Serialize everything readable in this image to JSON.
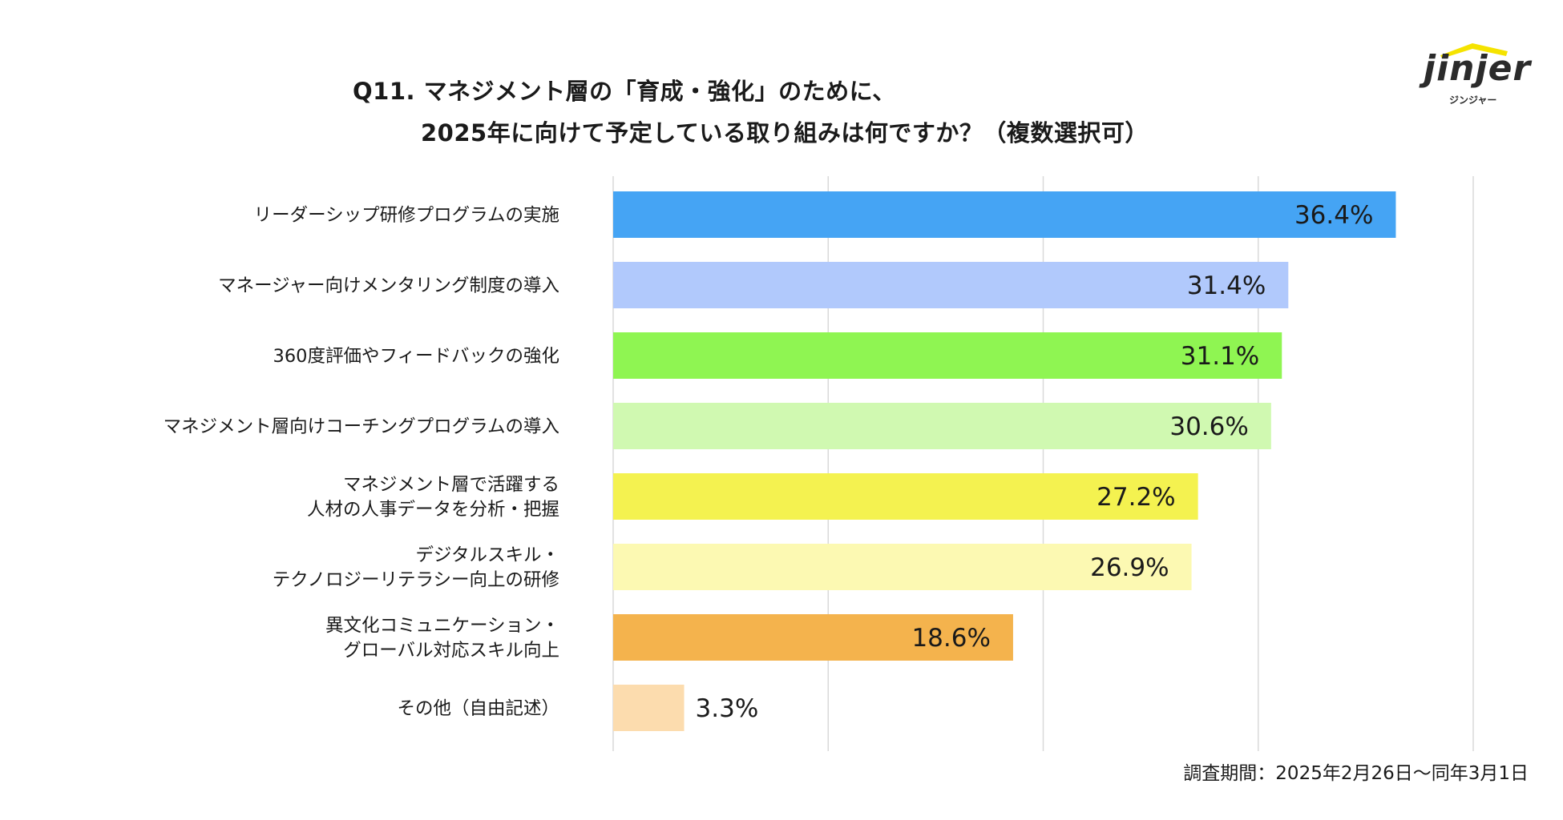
{
  "header": {
    "title_line1": "Q11. マネジメント層の「育成・強化」のために、",
    "title_line2": "2025年に向けて予定している取り組みは何ですか？（複数選択可）"
  },
  "logo": {
    "wordmark": "jinjer",
    "kana": "ジンジャー",
    "accent_color": "#f5e300"
  },
  "footnote": "調査期間：2025年2月26日～同年3月1日",
  "chart_data": {
    "type": "bar",
    "orientation": "horizontal",
    "title": "Q11. マネジメント層の「育成・強化」のために、2025年に向けて予定している取り組みは何ですか？（複数選択可）",
    "xlabel": "",
    "ylabel": "",
    "xlim": [
      0,
      40
    ],
    "grid": true,
    "categories": [
      [
        "リーダーシップ研修プログラムの実施"
      ],
      [
        "マネージャー向けメンタリング制度の導入"
      ],
      [
        "360度評価やフィードバックの強化"
      ],
      [
        "マネジメント層向けコーチングプログラムの導入"
      ],
      [
        "マネジメント層で活躍する",
        "人材の人事データを分析・把握"
      ],
      [
        "デジタルスキル・",
        "テクノロジーリテラシー向上の研修"
      ],
      [
        "異文化コミュニケーション・",
        "グローバル対応スキル向上"
      ],
      [
        "その他（自由記述）"
      ]
    ],
    "values": [
      36.4,
      31.4,
      31.1,
      30.6,
      27.2,
      26.9,
      18.6,
      3.3
    ],
    "labels": [
      "36.4%",
      "31.4%",
      "31.1%",
      "30.6%",
      "27.2%",
      "26.9%",
      "18.6%",
      "3.3%"
    ],
    "colors": [
      "#45a4f4",
      "#b1c9fc",
      "#8ff552",
      "#d0f9b1",
      "#f4f250",
      "#fcf9b2",
      "#f4b34d",
      "#fcdcae"
    ]
  }
}
